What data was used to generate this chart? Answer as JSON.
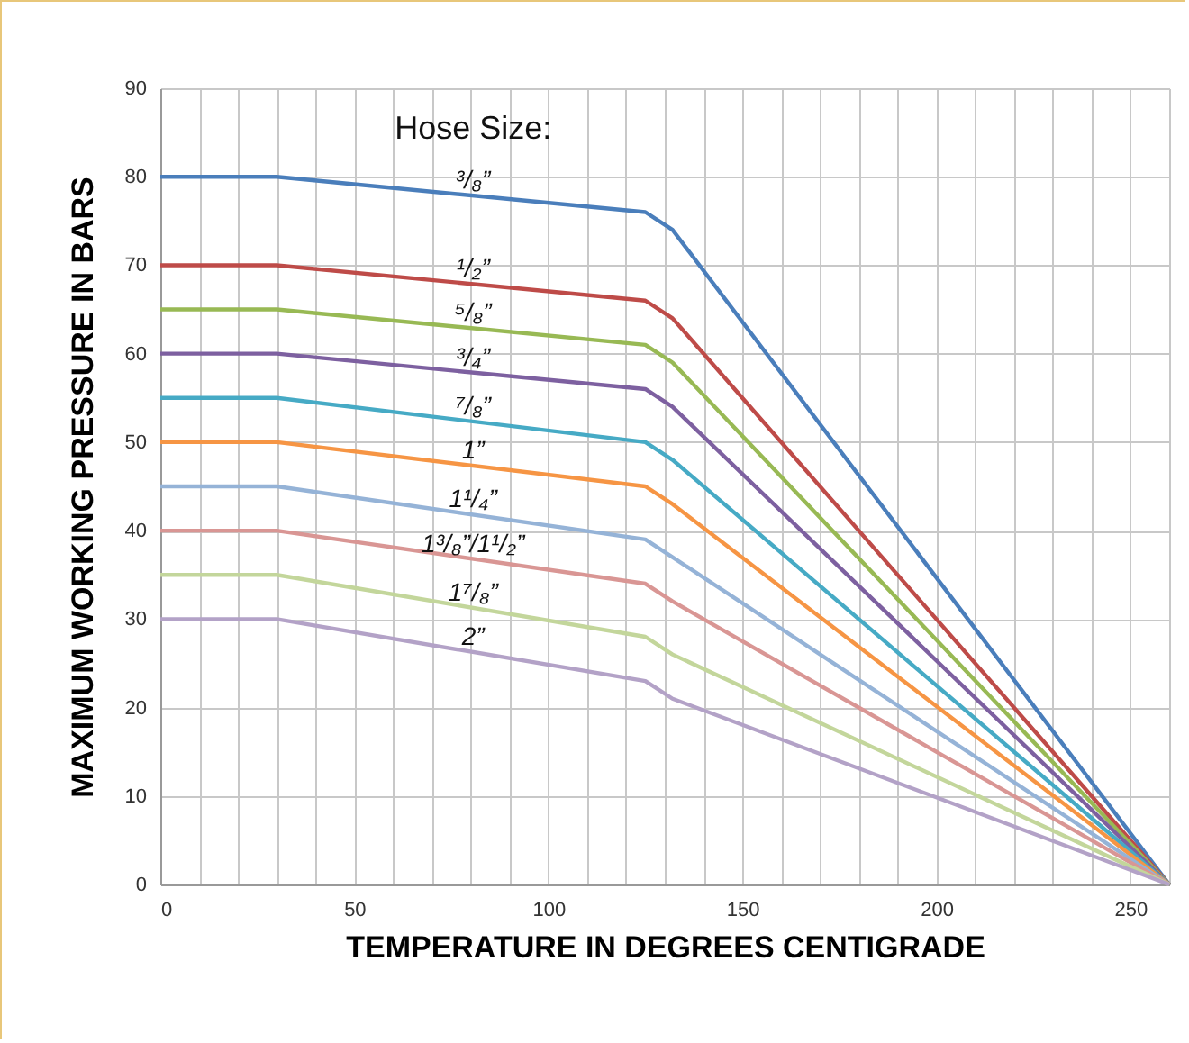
{
  "chart_data": {
    "type": "line",
    "xlabel": "TEMPERATURE IN DEGREES CENTIGRADE",
    "ylabel": "MAXIMUM WORKING PRESSURE IN BARS",
    "legend_title": "Hose Size:",
    "x": [
      0,
      30,
      125,
      132,
      260
    ],
    "series": [
      {
        "name": "³/₈”",
        "color": "#4a7ebb",
        "values": [
          80,
          80,
          76,
          74,
          0
        ]
      },
      {
        "name": "¹/₂”",
        "color": "#be4b48",
        "values": [
          70,
          70,
          66,
          64,
          0
        ]
      },
      {
        "name": "⁵/₈”",
        "color": "#98b954",
        "values": [
          65,
          65,
          61,
          59,
          0
        ]
      },
      {
        "name": "³/₄”",
        "color": "#7d60a0",
        "values": [
          60,
          60,
          56,
          54,
          0
        ]
      },
      {
        "name": "⁷/₈”",
        "color": "#46aac5",
        "values": [
          55,
          55,
          50,
          48,
          0
        ]
      },
      {
        "name": "1”",
        "color": "#f69544",
        "values": [
          50,
          50,
          45,
          43,
          0
        ]
      },
      {
        "name": "1¹/₄”",
        "color": "#95b3d7",
        "values": [
          45,
          45,
          39,
          37,
          0
        ]
      },
      {
        "name": "1³/₈”/1¹/₂”",
        "color": "#d99694",
        "values": [
          40,
          40,
          34,
          32,
          0
        ]
      },
      {
        "name": "1⁷/₈”",
        "color": "#c3d69b",
        "values": [
          35,
          35,
          28,
          26,
          0
        ]
      },
      {
        "name": "2”",
        "color": "#b3a2c7",
        "values": [
          30,
          30,
          23,
          21,
          0
        ]
      }
    ],
    "xlim": [
      0,
      260
    ],
    "ylim": [
      0,
      90
    ],
    "xticks": [
      0,
      {
        "value": 10,
        "label": null
      },
      {
        "value": 20,
        "label": null
      },
      {
        "value": 30,
        "label": null
      },
      {
        "value": 40,
        "label": null
      },
      50,
      {
        "value": 60,
        "label": null
      },
      {
        "value": 70,
        "label": null
      },
      {
        "value": 80,
        "label": null
      },
      {
        "value": 90,
        "label": null
      },
      100,
      {
        "value": 110,
        "label": null
      },
      {
        "value": 120,
        "label": null
      },
      {
        "value": 130,
        "label": null
      },
      {
        "value": 140,
        "label": null
      },
      150,
      {
        "value": 160,
        "label": null
      },
      {
        "value": 170,
        "label": null
      },
      {
        "value": 180,
        "label": null
      },
      {
        "value": 190,
        "label": null
      },
      200,
      {
        "value": 210,
        "label": null
      },
      {
        "value": 220,
        "label": null
      },
      {
        "value": 230,
        "label": null
      },
      {
        "value": 240,
        "label": null
      },
      250,
      {
        "value": 260,
        "label": null
      }
    ],
    "yticks": [
      0,
      10,
      20,
      30,
      40,
      50,
      60,
      70,
      80,
      90
    ],
    "grid": true,
    "line_style": "solid",
    "marker": "none"
  }
}
